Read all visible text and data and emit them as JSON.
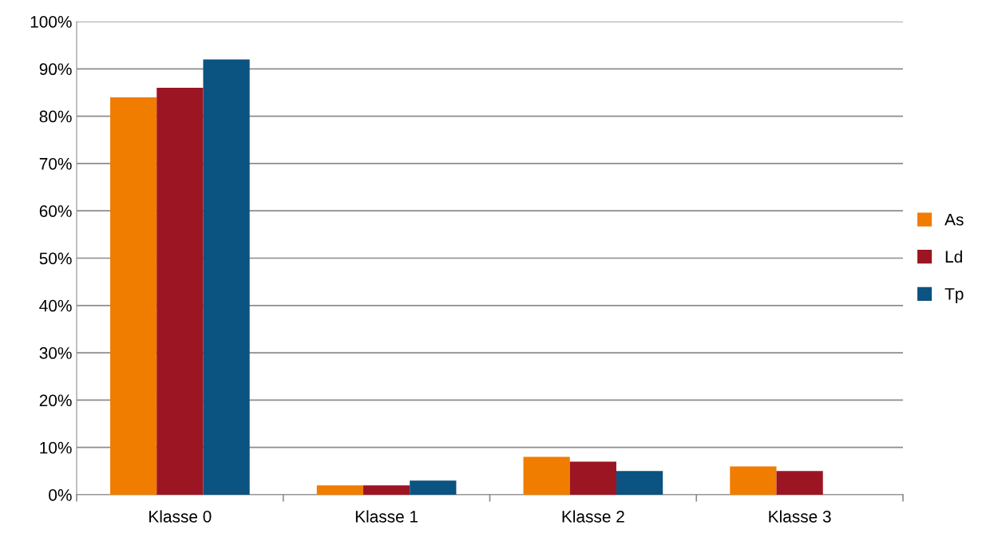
{
  "chart_data": {
    "type": "bar",
    "categories": [
      "Klasse 0",
      "Klasse 1",
      "Klasse 2",
      "Klasse 3"
    ],
    "series": [
      {
        "name": "As",
        "color": "#f07c00",
        "values": [
          84,
          2,
          8,
          6
        ]
      },
      {
        "name": "Ld",
        "color": "#9c1523",
        "values": [
          86,
          2,
          7,
          5
        ]
      },
      {
        "name": "Tp",
        "color": "#0b5380",
        "values": [
          92,
          3,
          5,
          0
        ]
      }
    ],
    "ylim": [
      0,
      100
    ],
    "yticks": [
      {
        "value": 0,
        "label": "0%"
      },
      {
        "value": 10,
        "label": "10%"
      },
      {
        "value": 20,
        "label": "20%"
      },
      {
        "value": 30,
        "label": "30%"
      },
      {
        "value": 40,
        "label": "40%"
      },
      {
        "value": 50,
        "label": "50%"
      },
      {
        "value": 60,
        "label": "60%"
      },
      {
        "value": 70,
        "label": "70%"
      },
      {
        "value": 80,
        "label": "80%"
      },
      {
        "value": 90,
        "label": "90%"
      },
      {
        "value": 100,
        "label": "100%"
      }
    ],
    "grid": "y",
    "legend": "right"
  }
}
